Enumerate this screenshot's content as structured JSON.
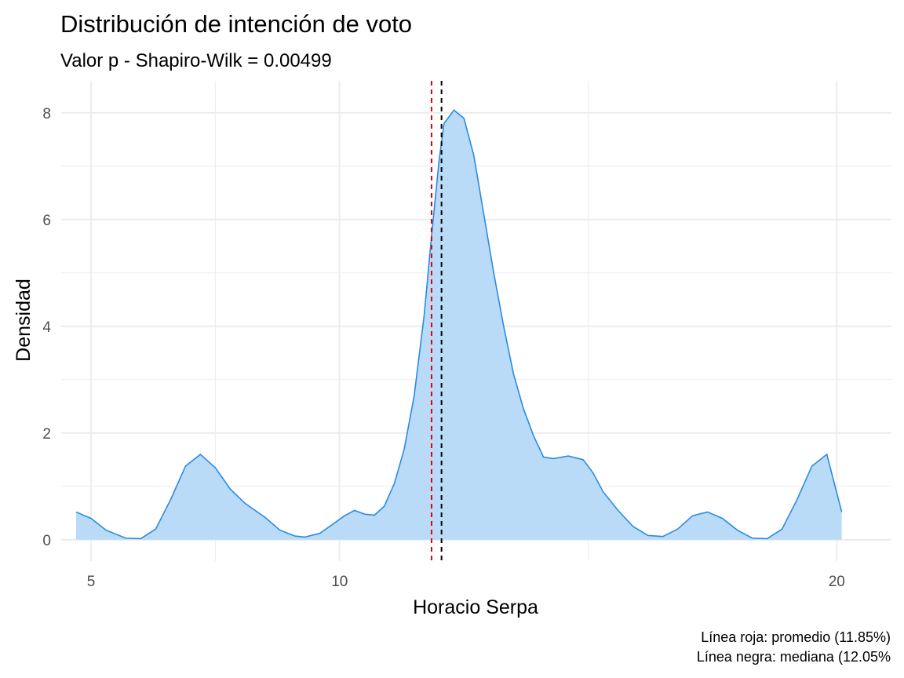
{
  "chart_data": {
    "type": "area",
    "title": "Distribución de intención de voto",
    "subtitle": "Valor p - Shapiro-Wilk = 0.00499",
    "xlabel": "Horacio Serpa",
    "ylabel": "Densidad",
    "caption_lines": [
      "Línea roja: promedio (11.85%)",
      "Línea negra: mediana (12.05%"
    ],
    "xlim": [
      4.4,
      21.1
    ],
    "ylim": [
      -0.4,
      8.6
    ],
    "x_ticks": [
      5,
      10,
      20
    ],
    "x_tick_labels": [
      "5",
      "10",
      "20"
    ],
    "y_ticks": [
      0,
      2,
      4,
      6,
      8
    ],
    "y_tick_labels": [
      "0",
      "2",
      "4",
      "6",
      "8"
    ],
    "grid": true,
    "series": [
      {
        "x": [
          4.7,
          5.0,
          5.3,
          5.7,
          6.0,
          6.3,
          6.6,
          6.9,
          7.2,
          7.5,
          7.8,
          8.1,
          8.5,
          8.8,
          9.1,
          9.3,
          9.6,
          9.8,
          10.1,
          10.3,
          10.5,
          10.7,
          10.9,
          11.1,
          11.3,
          11.5,
          11.7,
          11.85,
          12.0,
          12.1,
          12.3,
          12.5,
          12.7,
          12.9,
          13.1,
          13.3,
          13.5,
          13.7,
          13.9,
          14.1,
          14.3,
          14.6,
          14.9,
          15.1,
          15.3,
          15.6,
          15.9,
          16.2,
          16.5,
          16.8,
          17.1,
          17.4,
          17.7,
          18.0,
          18.3,
          18.6,
          18.9,
          19.2,
          19.5,
          19.8,
          20.1
        ],
        "y": [
          0.52,
          0.4,
          0.18,
          0.03,
          0.02,
          0.2,
          0.75,
          1.38,
          1.6,
          1.35,
          0.95,
          0.68,
          0.42,
          0.18,
          0.07,
          0.05,
          0.12,
          0.25,
          0.45,
          0.55,
          0.48,
          0.46,
          0.63,
          1.05,
          1.7,
          2.7,
          4.2,
          5.7,
          7.1,
          7.8,
          8.05,
          7.9,
          7.2,
          6.1,
          5.0,
          4.0,
          3.1,
          2.45,
          1.95,
          1.55,
          1.52,
          1.57,
          1.5,
          1.25,
          0.9,
          0.55,
          0.25,
          0.08,
          0.06,
          0.2,
          0.45,
          0.52,
          0.4,
          0.18,
          0.03,
          0.02,
          0.2,
          0.75,
          1.38,
          1.6,
          0.52
        ]
      }
    ],
    "vlines": [
      {
        "x": 11.85,
        "color": "#e8000b",
        "style": "dashed",
        "meaning": "promedio"
      },
      {
        "x": 12.05,
        "color": "#000000",
        "style": "dashed",
        "meaning": "mediana"
      }
    ],
    "colors": {
      "fill": "#b9dbf8",
      "line": "#2a8be0",
      "grid": "#ebebeb",
      "ticks": "#4d4d4d"
    }
  }
}
